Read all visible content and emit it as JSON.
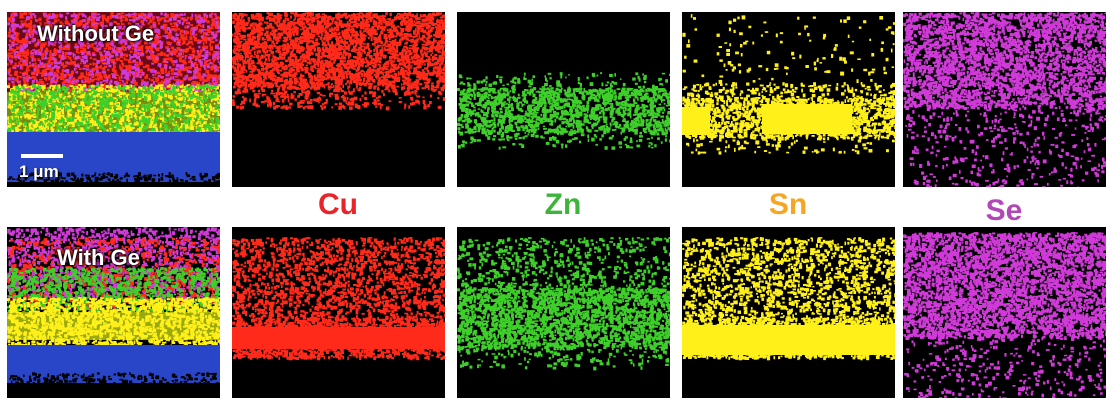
{
  "rows": {
    "top": {
      "label": "Without Ge"
    },
    "bottom": {
      "label": "With Ge"
    }
  },
  "scale_bar": {
    "label": "1 μm"
  },
  "elements": [
    {
      "symbol": "Cu",
      "color": "#e8252a"
    },
    {
      "symbol": "Zn",
      "color": "#3db43a"
    },
    {
      "symbol": "Sn",
      "color": "#f5a623"
    },
    {
      "symbol": "Se",
      "color": "#b347b8"
    }
  ],
  "map_colors": {
    "cu": "#ff2a1a",
    "zn": "#3fcf2a",
    "sn": "#fff01a",
    "se": "#d03ad8",
    "mo": "#2a46c8"
  }
}
